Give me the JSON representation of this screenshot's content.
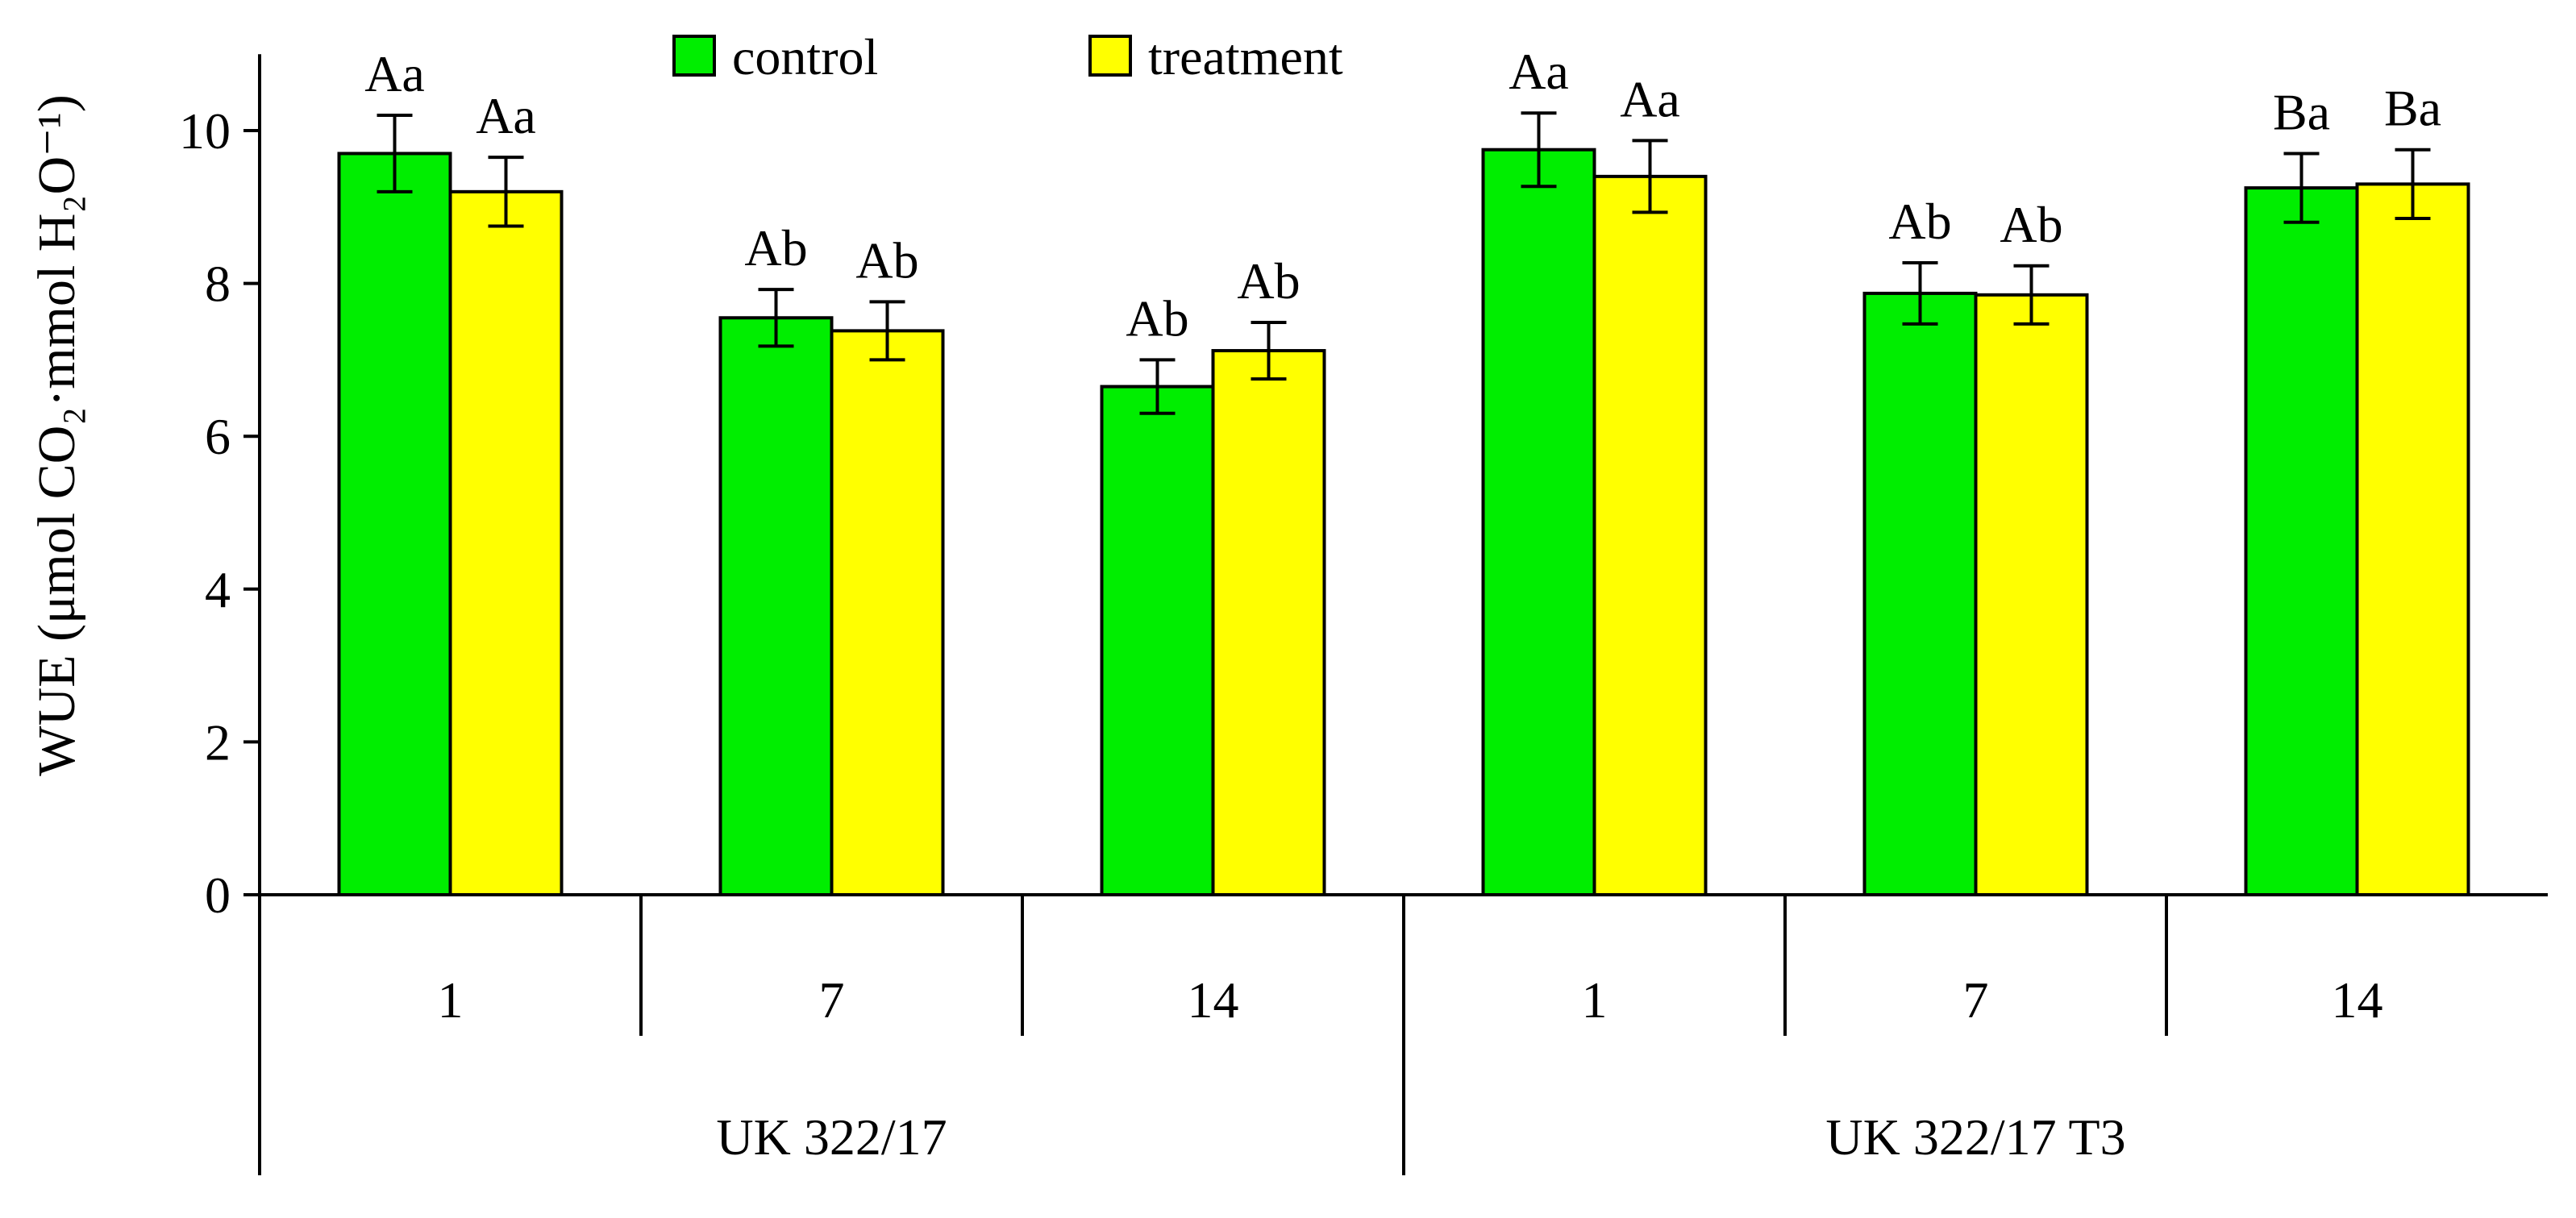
{
  "chart_data": {
    "type": "bar",
    "ylabel": "WUE (μmol CO₂·mmol H₂O⁻¹)",
    "ylim": [
      0,
      11
    ],
    "yticks": [
      0,
      2,
      4,
      6,
      8,
      10
    ],
    "categories": [
      "1",
      "7",
      "14",
      "1",
      "7",
      "14"
    ],
    "groups": [
      {
        "label": "UK 322/17",
        "categories": [
          "1",
          "7",
          "14"
        ]
      },
      {
        "label": "UK 322/17 T3",
        "categories": [
          "1",
          "7",
          "14"
        ]
      }
    ],
    "series": [
      {
        "name": "control",
        "color": "#00ee00",
        "values": [
          9.7,
          7.55,
          6.65,
          9.75,
          7.87,
          9.25
        ],
        "errors": [
          0.5,
          0.37,
          0.35,
          0.48,
          0.4,
          0.45
        ],
        "labels": [
          "Aa",
          "Ab",
          "Ab",
          "Aa",
          "Ab",
          "Ba"
        ]
      },
      {
        "name": "treatment",
        "color": "#ffff00",
        "values": [
          9.2,
          7.38,
          7.12,
          9.4,
          7.85,
          9.3
        ],
        "errors": [
          0.45,
          0.38,
          0.37,
          0.47,
          0.38,
          0.45
        ],
        "labels": [
          "Aa",
          "Ab",
          "Ab",
          "Aa",
          "Ab",
          "Ba"
        ]
      }
    ],
    "legend": {
      "position": "top-center"
    },
    "grid": false
  }
}
